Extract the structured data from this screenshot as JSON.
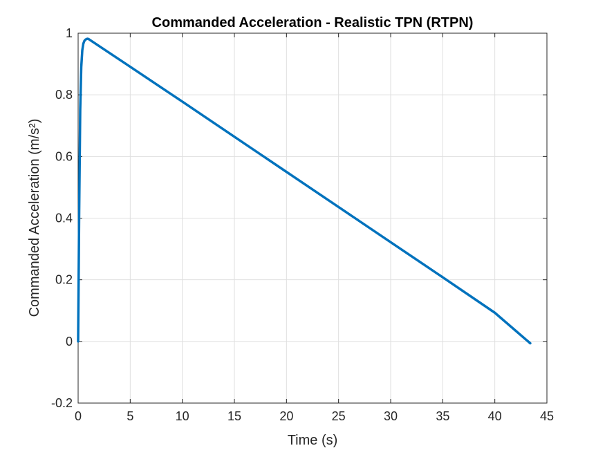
{
  "chart_data": {
    "type": "line",
    "title": "Commanded Acceleration - Realistic TPN (RTPN)",
    "xlabel": "Time (s)",
    "ylabel": "Commanded Acceleration (m/s²)",
    "xlim": [
      0,
      45
    ],
    "ylim": [
      -0.2,
      1
    ],
    "xticks": [
      0,
      5,
      10,
      15,
      20,
      25,
      30,
      35,
      40,
      45
    ],
    "yticks": [
      -0.2,
      0,
      0.2,
      0.4,
      0.6,
      0.8,
      1
    ],
    "xtick_labels": [
      "0",
      "5",
      "10",
      "15",
      "20",
      "25",
      "30",
      "35",
      "40",
      "45"
    ],
    "ytick_labels": [
      "-0.2",
      "0",
      "0.2",
      "0.4",
      "0.6",
      "0.8",
      "1"
    ],
    "grid": true,
    "series": [
      {
        "color": "#0072BD",
        "x": [
          0,
          0.1,
          0.2,
          0.3,
          0.4,
          0.5,
          0.6,
          0.7,
          0.8,
          0.9,
          1.0,
          5,
          10,
          15,
          20,
          25,
          30,
          35,
          40,
          43.4
        ],
        "y": [
          0,
          0.42,
          0.75,
          0.89,
          0.945,
          0.966,
          0.975,
          0.979,
          0.981,
          0.982,
          0.981,
          0.891,
          0.778,
          0.664,
          0.55,
          0.436,
          0.322,
          0.208,
          0.093,
          -0.006
        ]
      }
    ]
  }
}
